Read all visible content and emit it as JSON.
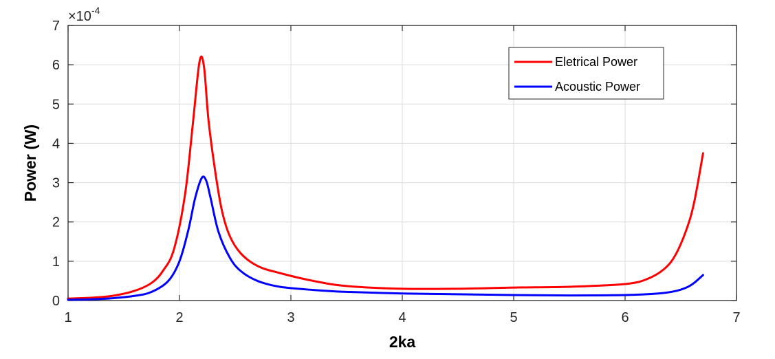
{
  "chart_data": {
    "type": "line",
    "title": "",
    "xlabel": "2ka",
    "ylabel": "Power (W)",
    "y_exponent_label": "×10",
    "y_exponent_power": "-4",
    "xlim": [
      1,
      7
    ],
    "ylim": [
      0,
      7
    ],
    "xticks": [
      1,
      2,
      3,
      4,
      5,
      6,
      7
    ],
    "yticks": [
      0,
      1,
      2,
      3,
      4,
      5,
      6,
      7
    ],
    "grid": true,
    "legend_position": "top-right",
    "series": [
      {
        "name": "Eletrical Power",
        "color": "#ff0000",
        "x": [
          1.0,
          1.2,
          1.4,
          1.6,
          1.75,
          1.85,
          1.95,
          2.05,
          2.12,
          2.18,
          2.22,
          2.26,
          2.32,
          2.38,
          2.45,
          2.55,
          2.7,
          2.9,
          3.2,
          3.5,
          4.0,
          4.5,
          5.0,
          5.5,
          6.0,
          6.2,
          6.35,
          6.45,
          6.55,
          6.62,
          6.7
        ],
        "y": [
          0.05,
          0.07,
          0.12,
          0.25,
          0.45,
          0.75,
          1.3,
          2.7,
          4.5,
          6.08,
          5.95,
          4.6,
          3.3,
          2.3,
          1.65,
          1.2,
          0.88,
          0.7,
          0.5,
          0.37,
          0.3,
          0.3,
          0.33,
          0.35,
          0.42,
          0.55,
          0.8,
          1.15,
          1.8,
          2.5,
          3.75
        ]
      },
      {
        "name": "Acoustic Power",
        "color": "#0000ff",
        "x": [
          1.0,
          1.2,
          1.4,
          1.6,
          1.75,
          1.9,
          2.0,
          2.08,
          2.14,
          2.2,
          2.24,
          2.28,
          2.35,
          2.45,
          2.55,
          2.7,
          2.9,
          3.2,
          3.5,
          4.0,
          4.5,
          5.0,
          5.5,
          6.0,
          6.3,
          6.45,
          6.55,
          6.62,
          6.7
        ],
        "y": [
          0.02,
          0.03,
          0.06,
          0.12,
          0.22,
          0.5,
          1.0,
          1.8,
          2.6,
          3.12,
          3.05,
          2.6,
          1.75,
          1.1,
          0.75,
          0.5,
          0.35,
          0.27,
          0.22,
          0.18,
          0.16,
          0.14,
          0.13,
          0.14,
          0.18,
          0.24,
          0.33,
          0.45,
          0.65
        ]
      }
    ]
  }
}
